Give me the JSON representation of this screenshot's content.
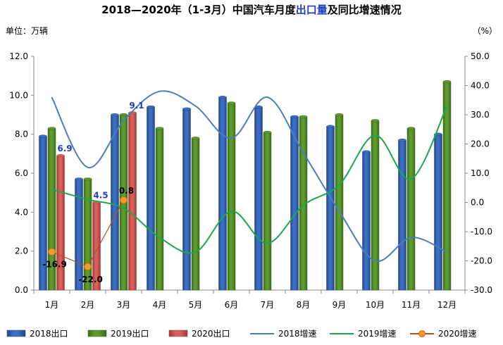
{
  "chart_data": {
    "type": "bar",
    "title": {
      "prefix": "2018—2020年（1-3月）中国汽车月度",
      "highlight": "出口量",
      "suffix": "及同比增速情况"
    },
    "ylabel_left": "单位：万辆",
    "ylabel_right": "（%）",
    "categories": [
      "1月",
      "2月",
      "3月",
      "4月",
      "5月",
      "6月",
      "7月",
      "8月",
      "9月",
      "10月",
      "11月",
      "12月"
    ],
    "ylim_left": [
      0,
      12
    ],
    "yticks_left": [
      "0.0",
      "2.0",
      "4.0",
      "6.0",
      "8.0",
      "10.0",
      "12.0"
    ],
    "ylim_right": [
      -30,
      50
    ],
    "yticks_right": [
      "-30.0",
      "-20.0",
      "-10.0",
      "0.0",
      "10.0",
      "20.0",
      "30.0",
      "40.0",
      "50.0"
    ],
    "grid": false,
    "legend_position": "bottom",
    "bar_series": [
      {
        "name": "2018出口",
        "color": "#3c6fc4",
        "values": [
          7.9,
          5.7,
          9.0,
          9.4,
          9.3,
          9.9,
          9.4,
          8.9,
          8.4,
          7.1,
          7.7,
          8.0
        ]
      },
      {
        "name": "2019出口",
        "color": "#5e9b2d",
        "values": [
          8.3,
          5.7,
          9.0,
          8.3,
          7.8,
          9.6,
          8.1,
          8.9,
          9.0,
          8.7,
          8.3,
          10.7
        ]
      },
      {
        "name": "2020出口",
        "color": "#d9605c",
        "values": [
          6.9,
          4.5,
          9.1,
          null,
          null,
          null,
          null,
          null,
          null,
          null,
          null,
          null
        ]
      }
    ],
    "line_series": [
      {
        "name": "2018增速",
        "color": "#4a7ebb",
        "values": [
          36,
          12,
          28,
          38,
          33,
          22,
          36,
          17,
          -3,
          -20,
          -12,
          -17
        ]
      },
      {
        "name": "2019增速",
        "color": "#1aa84a",
        "values": [
          4.5,
          1.0,
          -2.0,
          -12,
          -17,
          -3,
          -14,
          -1,
          6,
          23,
          8,
          33
        ]
      },
      {
        "name": "2020增速",
        "color": "#b5502a",
        "values": [
          -16.9,
          -22.0,
          0.8,
          null,
          null,
          null,
          null,
          null,
          null,
          null,
          null,
          null
        ]
      }
    ],
    "bar_labels": [
      {
        "series": 2,
        "index": 0,
        "text": "6.9"
      },
      {
        "series": 2,
        "index": 1,
        "text": "4.5"
      },
      {
        "series": 2,
        "index": 2,
        "text": "9.1"
      }
    ],
    "line_labels": [
      {
        "series": 2,
        "index": 0,
        "text": "-16.9"
      },
      {
        "series": 2,
        "index": 1,
        "text": "-22.0"
      },
      {
        "series": 2,
        "index": 2,
        "text": "0.8"
      }
    ]
  }
}
